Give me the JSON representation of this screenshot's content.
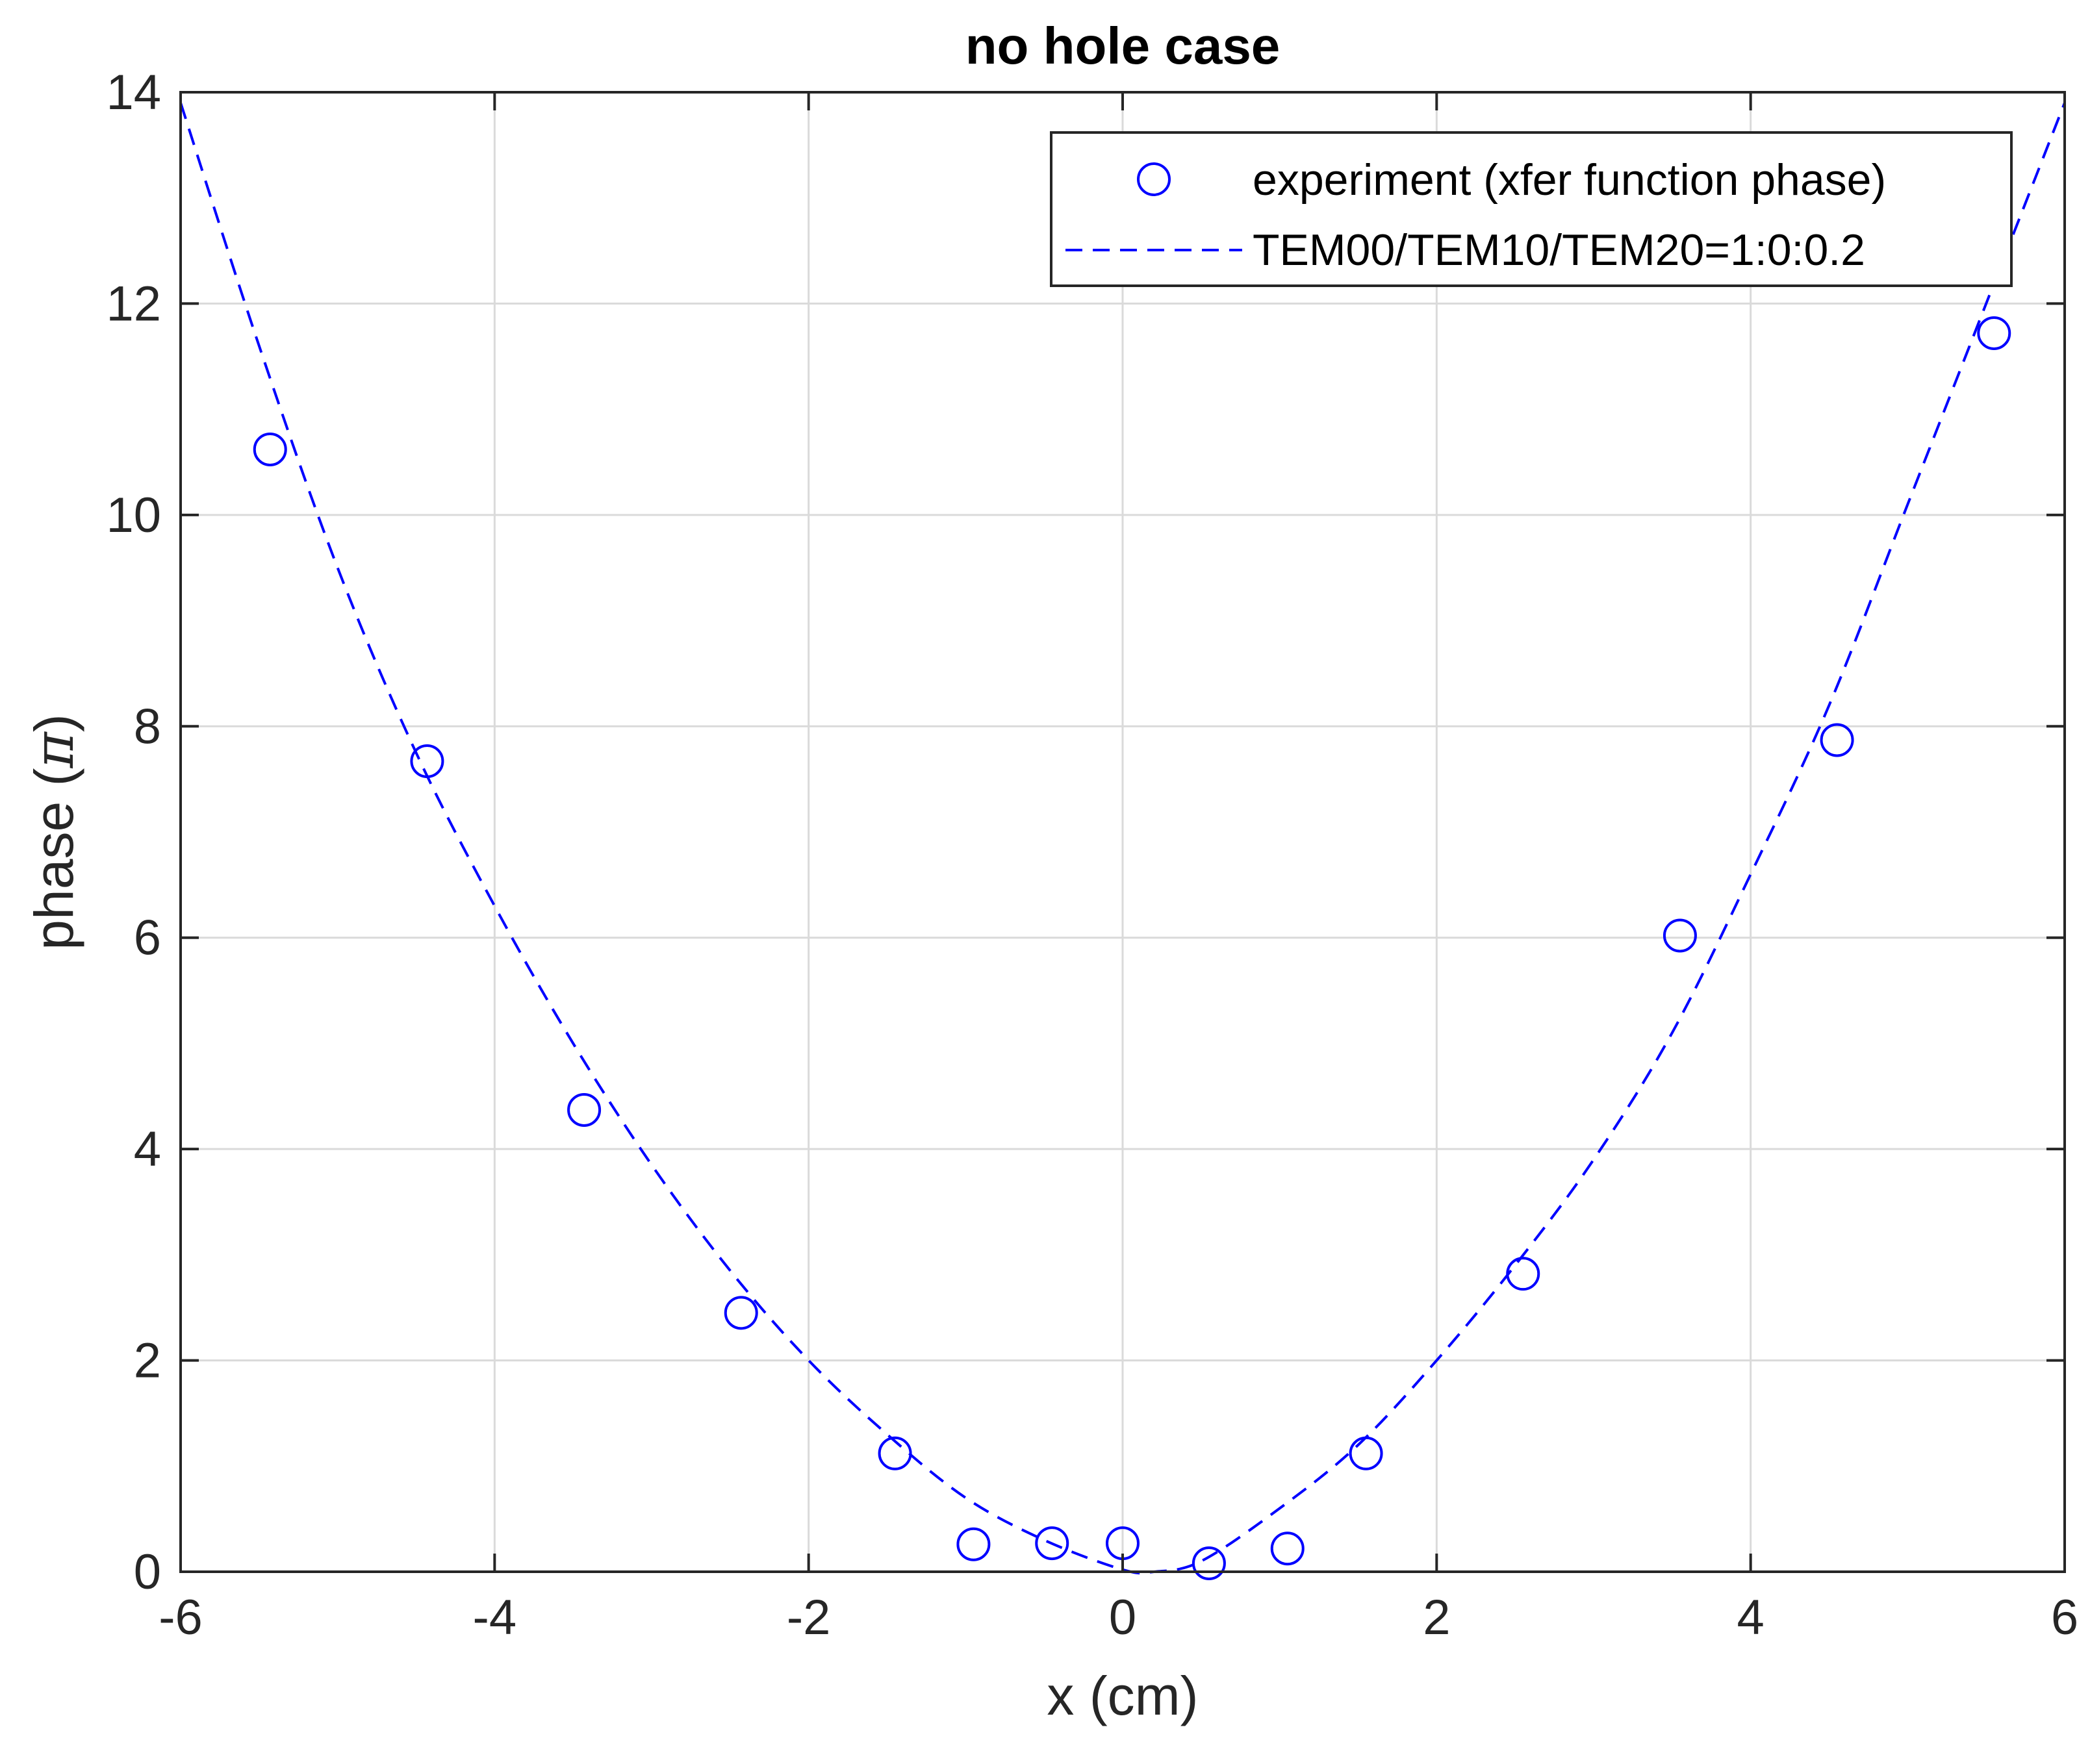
{
  "chart_data": {
    "type": "scatter",
    "title": "no hole case",
    "xlabel": "x (cm)",
    "ylabel_prefix": "phase (",
    "ylabel_symbol": "π",
    "ylabel_suffix": ")",
    "xlim": [
      -6,
      6
    ],
    "ylim": [
      0,
      14
    ],
    "xticks": [
      "-6",
      "-4",
      "-2",
      "0",
      "2",
      "4",
      "6"
    ],
    "yticks": [
      "0",
      "2",
      "4",
      "6",
      "8",
      "10",
      "12",
      "14"
    ],
    "grid": true,
    "legend_position": "top-right",
    "series": [
      {
        "name": "experiment (xfer function phase)",
        "style": "circle-markers",
        "color": "#0000ff",
        "x": [
          -5.43,
          -4.43,
          -3.43,
          -2.43,
          -1.45,
          -0.95,
          -0.45,
          0.0,
          0.55,
          1.05,
          1.55,
          2.55,
          3.55,
          4.55,
          5.55
        ],
        "y": [
          10.62,
          7.67,
          4.37,
          2.45,
          1.12,
          0.26,
          0.27,
          0.27,
          0.08,
          0.22,
          1.12,
          2.82,
          6.02,
          7.87,
          11.72
        ]
      },
      {
        "name": "TEM00/TEM10/TEM20=1:0:0.2",
        "style": "dashed-line",
        "color": "#0000ff",
        "x": [
          -6.0,
          -5.5,
          -5.0,
          -4.5,
          -4.0,
          -3.5,
          -3.0,
          -2.5,
          -2.0,
          -1.5,
          -1.0,
          -0.5,
          0.0,
          0.2,
          0.5,
          1.0,
          1.5,
          2.0,
          2.5,
          3.0,
          3.5,
          4.0,
          4.5,
          5.0,
          5.5,
          6.0
        ],
        "y": [
          13.9,
          11.6,
          9.5,
          7.75,
          6.3,
          5.0,
          3.85,
          2.85,
          2.0,
          1.3,
          0.7,
          0.3,
          0.02,
          0.0,
          0.1,
          0.6,
          1.2,
          2.0,
          2.9,
          3.9,
          5.1,
          6.6,
          8.2,
          10.1,
          12.0,
          13.9
        ]
      }
    ]
  }
}
